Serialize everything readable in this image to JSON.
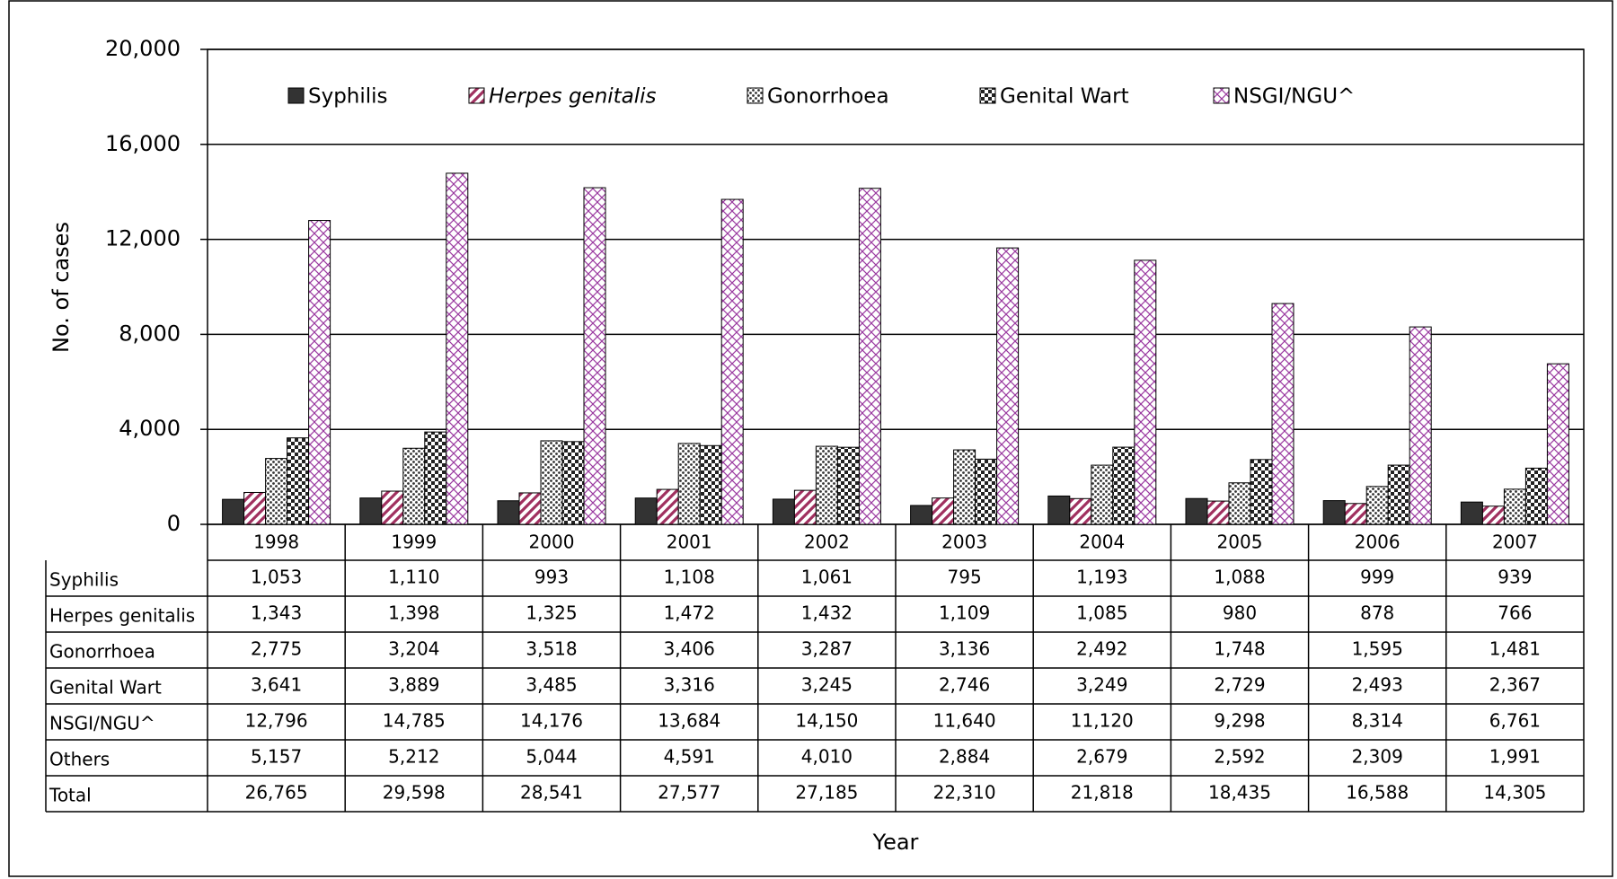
{
  "chart_data": {
    "type": "bar",
    "y_label": "No. of cases",
    "x_label": "Year",
    "categories": [
      "1998",
      "1999",
      "2000",
      "2001",
      "2002",
      "2003",
      "2004",
      "2005",
      "2006",
      "2007"
    ],
    "ylim": [
      0,
      20000
    ],
    "yticks": [
      0,
      {
        "value": 4000,
        "label": "4,000"
      },
      {
        "value": 8000,
        "label": "8,000"
      },
      {
        "value": 12000,
        "label": "12,000"
      },
      {
        "value": 16000,
        "label": "16,000"
      },
      {
        "value": 20000,
        "label": "20,000"
      }
    ],
    "grid": true,
    "series": [
      {
        "name": "Syphilis",
        "color": "#333333",
        "pattern": "solid",
        "values": [
          1053,
          1110,
          993,
          1108,
          1061,
          795,
          1193,
          1088,
          999,
          939
        ],
        "value_labels": [
          "1,053",
          "1,110",
          "993",
          "1,108",
          "1,061",
          "795",
          "1,193",
          "1,088",
          "999",
          "939"
        ]
      },
      {
        "name": "Herpes genitalis",
        "color": "#a0305f",
        "pattern": "stripes",
        "values": [
          1343,
          1398,
          1325,
          1472,
          1432,
          1109,
          1085,
          980,
          878,
          766
        ],
        "value_labels": [
          "1,343",
          "1,398",
          "1,325",
          "1,472",
          "1,432",
          "1,109",
          "1,085",
          "980",
          "878",
          "766"
        ]
      },
      {
        "name": "Gonorrhoea",
        "color": "#333333",
        "pattern": "dots",
        "values": [
          2775,
          3204,
          3518,
          3406,
          3287,
          3136,
          2492,
          1748,
          1595,
          1481
        ],
        "value_labels": [
          "2,775",
          "3,204",
          "3,518",
          "3,406",
          "3,287",
          "3,136",
          "2,492",
          "1,748",
          "1,595",
          "1,481"
        ]
      },
      {
        "name": "Genital Wart",
        "color": "#222222",
        "pattern": "checker",
        "values": [
          3641,
          3889,
          3485,
          3316,
          3245,
          2746,
          3249,
          2729,
          2493,
          2367
        ],
        "value_labels": [
          "3,641",
          "3,889",
          "3,485",
          "3,316",
          "3,245",
          "2,746",
          "3,249",
          "2,729",
          "2,493",
          "2,367"
        ]
      },
      {
        "name": "NSGI/NGU^",
        "color": "#9a3aa0",
        "pattern": "crosshatch",
        "values": [
          12796,
          14785,
          14176,
          13684,
          14150,
          11640,
          11120,
          9298,
          8314,
          6761
        ],
        "value_labels": [
          "12,796",
          "14,785",
          "14,176",
          "13,684",
          "14,150",
          "11,640",
          "11,120",
          "9,298",
          "8,314",
          "6,761"
        ]
      }
    ],
    "table_rows": [
      {
        "name": "Others",
        "values": [
          5157,
          5212,
          5044,
          4591,
          4010,
          2884,
          2679,
          2592,
          2309,
          1991
        ],
        "value_labels": [
          "5,157",
          "5,212",
          "5,044",
          "4,591",
          "4,010",
          "2,884",
          "2,679",
          "2,592",
          "2,309",
          "1,991"
        ]
      },
      {
        "name": "Total",
        "values": [
          26765,
          29598,
          28541,
          27577,
          27185,
          22310,
          21818,
          18435,
          16588,
          14305
        ],
        "value_labels": [
          "26,765",
          "29,598",
          "28,541",
          "27,577",
          "27,185",
          "22,310",
          "21,818",
          "18,435",
          "16,588",
          "14,305"
        ]
      }
    ]
  }
}
